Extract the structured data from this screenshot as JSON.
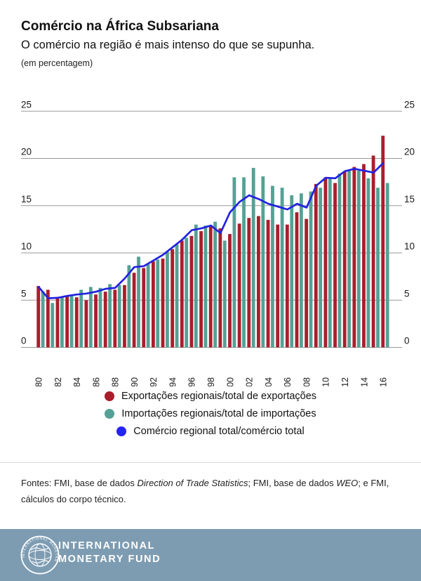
{
  "header": {
    "title": "Comércio na África Subsariana",
    "subtitle": "O comércio na região é mais intenso do que se supunha.",
    "units": "(em percentagem)"
  },
  "chart_data": {
    "type": "bar",
    "title": "Comércio na África Subsariana",
    "ylabel": "em percentagem",
    "ylim": [
      0,
      25
    ],
    "yticks": [
      0,
      5,
      10,
      15,
      20,
      25
    ],
    "grid": true,
    "legend_position": "bottom",
    "x": [
      1980,
      1981,
      1982,
      1983,
      1984,
      1985,
      1986,
      1987,
      1988,
      1989,
      1990,
      1991,
      1992,
      1993,
      1994,
      1995,
      1996,
      1997,
      1998,
      1999,
      2000,
      2001,
      2002,
      2003,
      2004,
      2005,
      2006,
      2007,
      2008,
      2009,
      2010,
      2011,
      2012,
      2013,
      2014,
      2015,
      2016
    ],
    "xtick_step": 2,
    "series": [
      {
        "name": "Exportações regionais/total de exportações",
        "kind": "bar",
        "color": "#a91e2c",
        "values": [
          6.5,
          6.1,
          5.2,
          5.4,
          5.3,
          5.0,
          5.6,
          5.9,
          6.1,
          6.6,
          7.9,
          8.4,
          9.1,
          9.4,
          10.4,
          11.3,
          11.8,
          12.3,
          12.8,
          12.6,
          12.0,
          13.1,
          13.7,
          13.9,
          13.5,
          13.0,
          13.0,
          14.3,
          13.6,
          17.3,
          18.0,
          17.4,
          18.6,
          19.1,
          19.4,
          20.3,
          22.4
        ]
      },
      {
        "name": "Importações regionais/total de importações",
        "kind": "bar",
        "color": "#55a195",
        "values": [
          5.9,
          4.7,
          5.3,
          5.5,
          6.1,
          6.4,
          6.3,
          6.7,
          6.6,
          8.7,
          9.6,
          8.8,
          9.3,
          10.1,
          10.9,
          11.6,
          13.0,
          12.9,
          13.3,
          11.3,
          18.0,
          18.0,
          19.0,
          18.1,
          17.1,
          16.9,
          16.1,
          16.3,
          16.5,
          16.9,
          17.9,
          18.4,
          18.7,
          18.7,
          17.9,
          16.9,
          17.4
        ]
      },
      {
        "name": "Comércio regional total/comércio total",
        "kind": "line",
        "color": "#2222e0",
        "values": [
          6.4,
          5.2,
          5.25,
          5.45,
          5.6,
          5.7,
          5.9,
          6.2,
          6.3,
          7.3,
          8.5,
          8.6,
          9.2,
          9.8,
          10.6,
          11.4,
          12.4,
          12.6,
          12.9,
          12.1,
          14.3,
          15.4,
          16.1,
          15.7,
          15.2,
          14.9,
          14.6,
          15.2,
          14.8,
          17.1,
          17.95,
          17.9,
          18.65,
          18.9,
          18.7,
          18.5,
          19.5
        ]
      }
    ]
  },
  "legend": {
    "items": [
      {
        "label": "Exportações regionais/total de exportações",
        "color": "#a91e2c"
      },
      {
        "label": "Importações regionais/total de importações",
        "color": "#55a195"
      },
      {
        "label": "Comércio regional total/comércio total",
        "color": "#2424f0"
      }
    ]
  },
  "sources": {
    "parts": [
      {
        "text": "Fontes: FMI, base de dados ",
        "italic": false
      },
      {
        "text": "Direction of Trade Statistics",
        "italic": true
      },
      {
        "text": "; FMI, base de dados ",
        "italic": false
      },
      {
        "text": "WEO",
        "italic": true
      },
      {
        "text": "; e FMI, cálculos do corpo técnico.",
        "italic": false
      }
    ]
  },
  "logo": {
    "bar_color": "#7d9cb2",
    "seal_text": "INTERNATIONAL MONETARY FUND",
    "org_line1": "INTERNATIONAL",
    "org_line2": "MONETARY FUND"
  }
}
